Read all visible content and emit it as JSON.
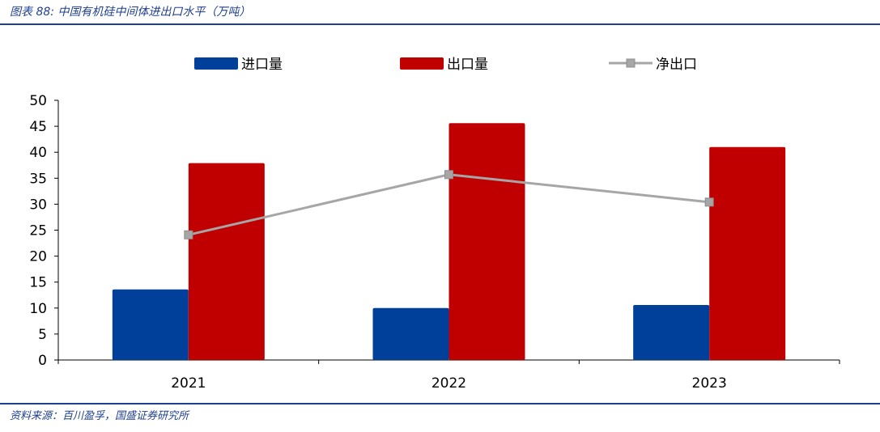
{
  "caption": "图表 88: 中国有机硅中间体进出口水平（万吨）",
  "source": "资料来源：百川盈孚，国盛证券研究所",
  "colors": {
    "import": "#003f9a",
    "export": "#c00000",
    "net_export": "#a6a6a6",
    "accent_rule": "#1f3f8f"
  },
  "chart_data": {
    "type": "bar",
    "categories": [
      "2021",
      "2022",
      "2023"
    ],
    "ylim": [
      0,
      50
    ],
    "yticks": [
      0,
      5,
      10,
      15,
      20,
      25,
      30,
      35,
      40,
      45,
      50
    ],
    "legend_position": "top",
    "grid": false,
    "series": [
      {
        "name": "进口量",
        "type": "bar",
        "color": "#003f9a",
        "values": [
          13.6,
          10.0,
          10.6
        ]
      },
      {
        "name": "出口量",
        "type": "bar",
        "color": "#c00000",
        "values": [
          37.9,
          45.6,
          41.0
        ]
      },
      {
        "name": "净出口",
        "type": "line",
        "color": "#a6a6a6",
        "marker": "square",
        "values": [
          24.1,
          35.7,
          30.4
        ]
      }
    ]
  }
}
